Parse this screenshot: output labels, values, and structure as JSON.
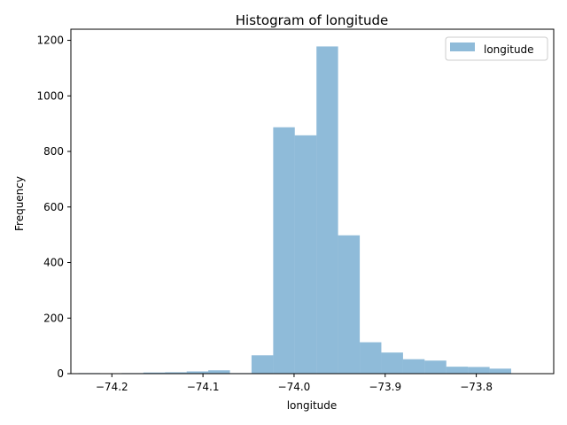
{
  "chart_data": {
    "type": "bar",
    "title": "Histogram of longitude",
    "xlabel": "longitude",
    "ylabel": "Frequency",
    "xlim": [
      -74.245,
      -73.715
    ],
    "ylim": [
      0,
      1240
    ],
    "xticks": [
      -74.2,
      -74.1,
      -74.0,
      -73.9,
      -73.8
    ],
    "xtick_labels": [
      "−74.2",
      "−74.1",
      "−74.0",
      "−73.9",
      "−73.8"
    ],
    "yticks": [
      0,
      200,
      400,
      600,
      800,
      1000,
      1200
    ],
    "ytick_labels": [
      "0",
      "200",
      "400",
      "600",
      "800",
      "1000",
      "1200"
    ],
    "bin_edges": [
      -74.2367,
      -74.2129,
      -74.1892,
      -74.1654,
      -74.1417,
      -74.1179,
      -74.0942,
      -74.0704,
      -74.0467,
      -74.0229,
      -73.9992,
      -73.9754,
      -73.9517,
      -73.9279,
      -73.9042,
      -73.8804,
      -73.8567,
      -73.8329,
      -73.8092,
      -73.7854,
      -73.7617
    ],
    "counts": [
      2,
      0,
      2,
      4,
      5,
      8,
      12,
      2,
      66,
      887,
      858,
      1178,
      498,
      113,
      76,
      52,
      47,
      25,
      24,
      18
    ],
    "grid": false,
    "legend": {
      "position": "top-right",
      "entries": [
        "longitude"
      ]
    },
    "colors": {
      "bar": "#1f77b4",
      "bar_opacity": 0.5,
      "axis": "#000000"
    }
  }
}
